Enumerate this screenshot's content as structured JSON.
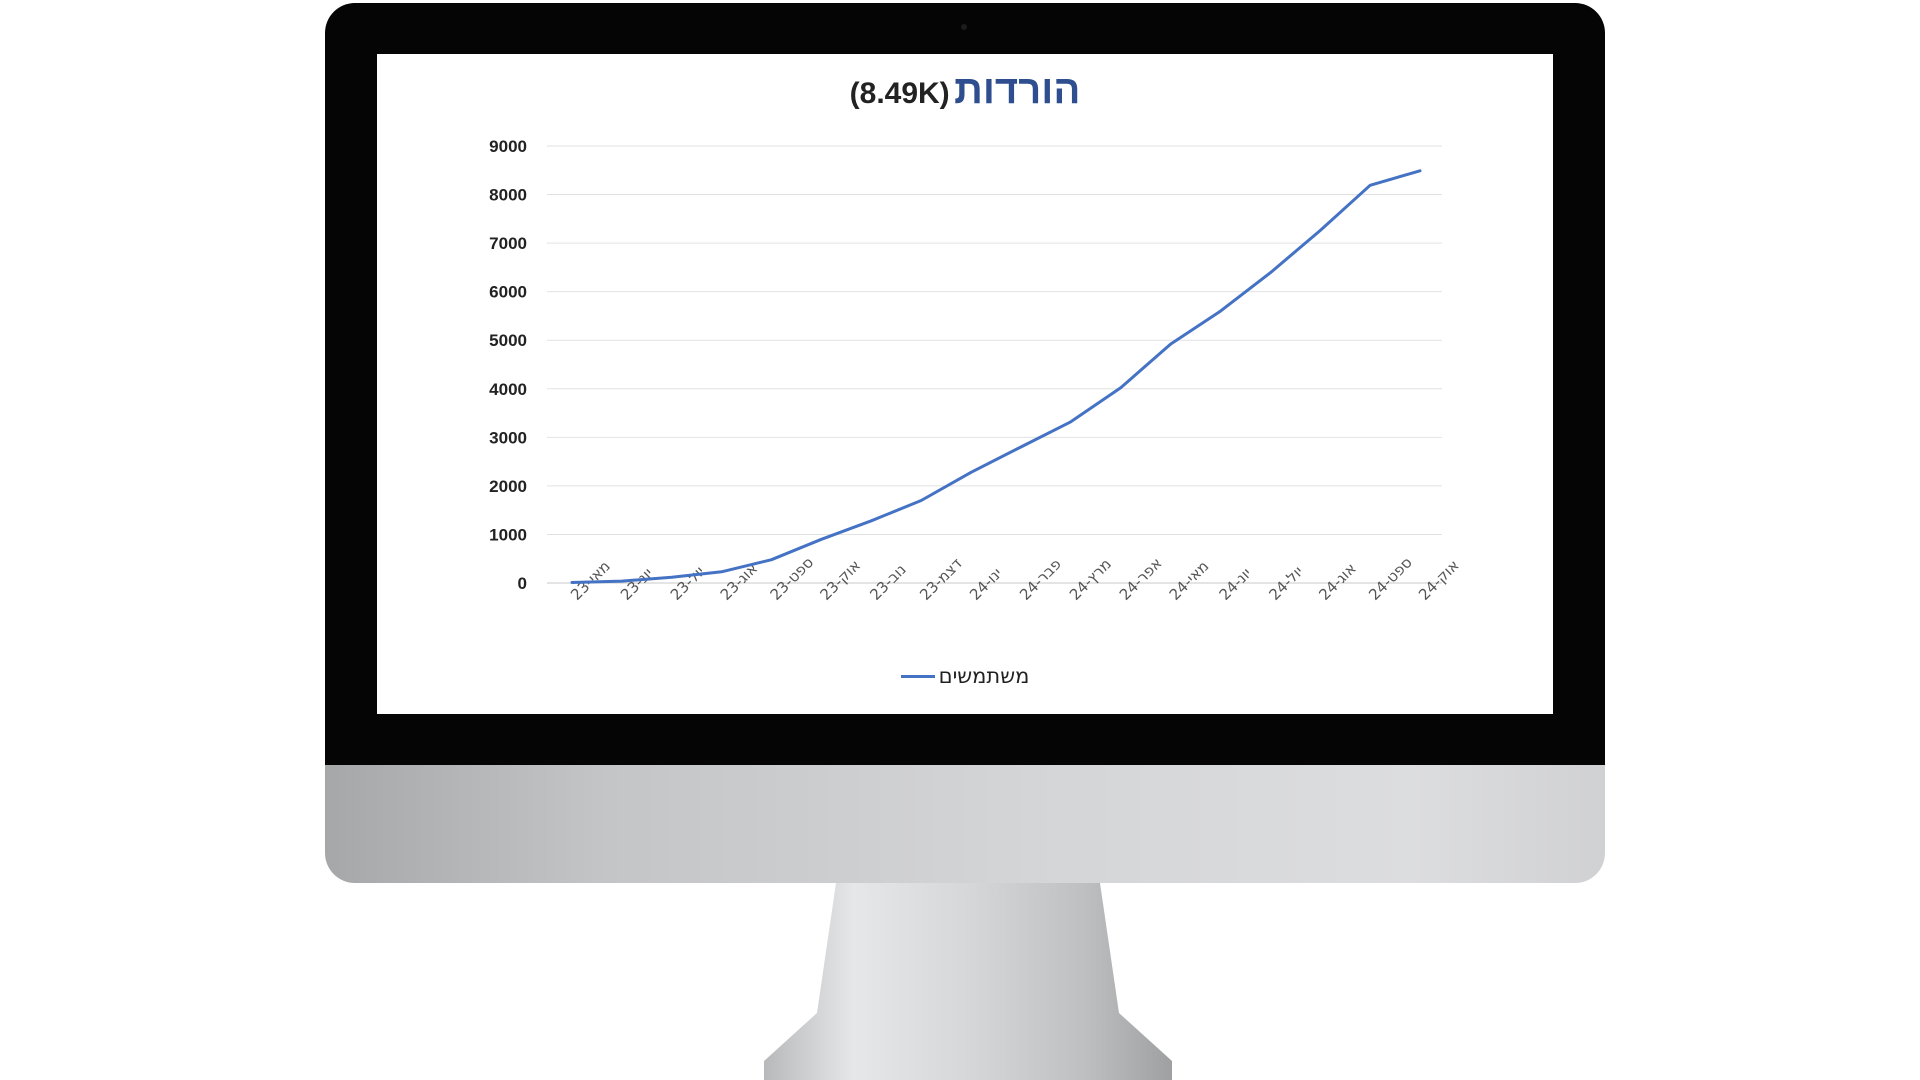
{
  "chart_data": {
    "type": "line",
    "title": "הורדות",
    "subtitle": "(8.49K)",
    "categories": [
      "מאי-23",
      "יונ-23",
      "יול-23",
      "אוג-23",
      "ספט-23",
      "אוק-23",
      "נוב-23",
      "דצמ-23",
      "ינו-24",
      "פבר-24",
      "מרץ-24",
      "אפר-24",
      "מאי-24",
      "יונ-24",
      "יול-24",
      "אוג-24",
      "ספט-24",
      "אוק-24"
    ],
    "series": [
      {
        "name": "משתמשים",
        "color": "#4472c4",
        "values": [
          10,
          40,
          120,
          230,
          480,
          900,
          1280,
          1700,
          2280,
          2800,
          3320,
          4020,
          4920,
          5600,
          6390,
          7260,
          8190,
          8490
        ]
      }
    ],
    "y_ticks": [
      "0",
      "1000",
      "2000",
      "3000",
      "4000",
      "5000",
      "6000",
      "7000",
      "8000",
      "9000"
    ],
    "ylim": [
      0,
      9000
    ],
    "xlabel": "",
    "ylabel": "",
    "grid": true,
    "legend_position": "bottom"
  }
}
